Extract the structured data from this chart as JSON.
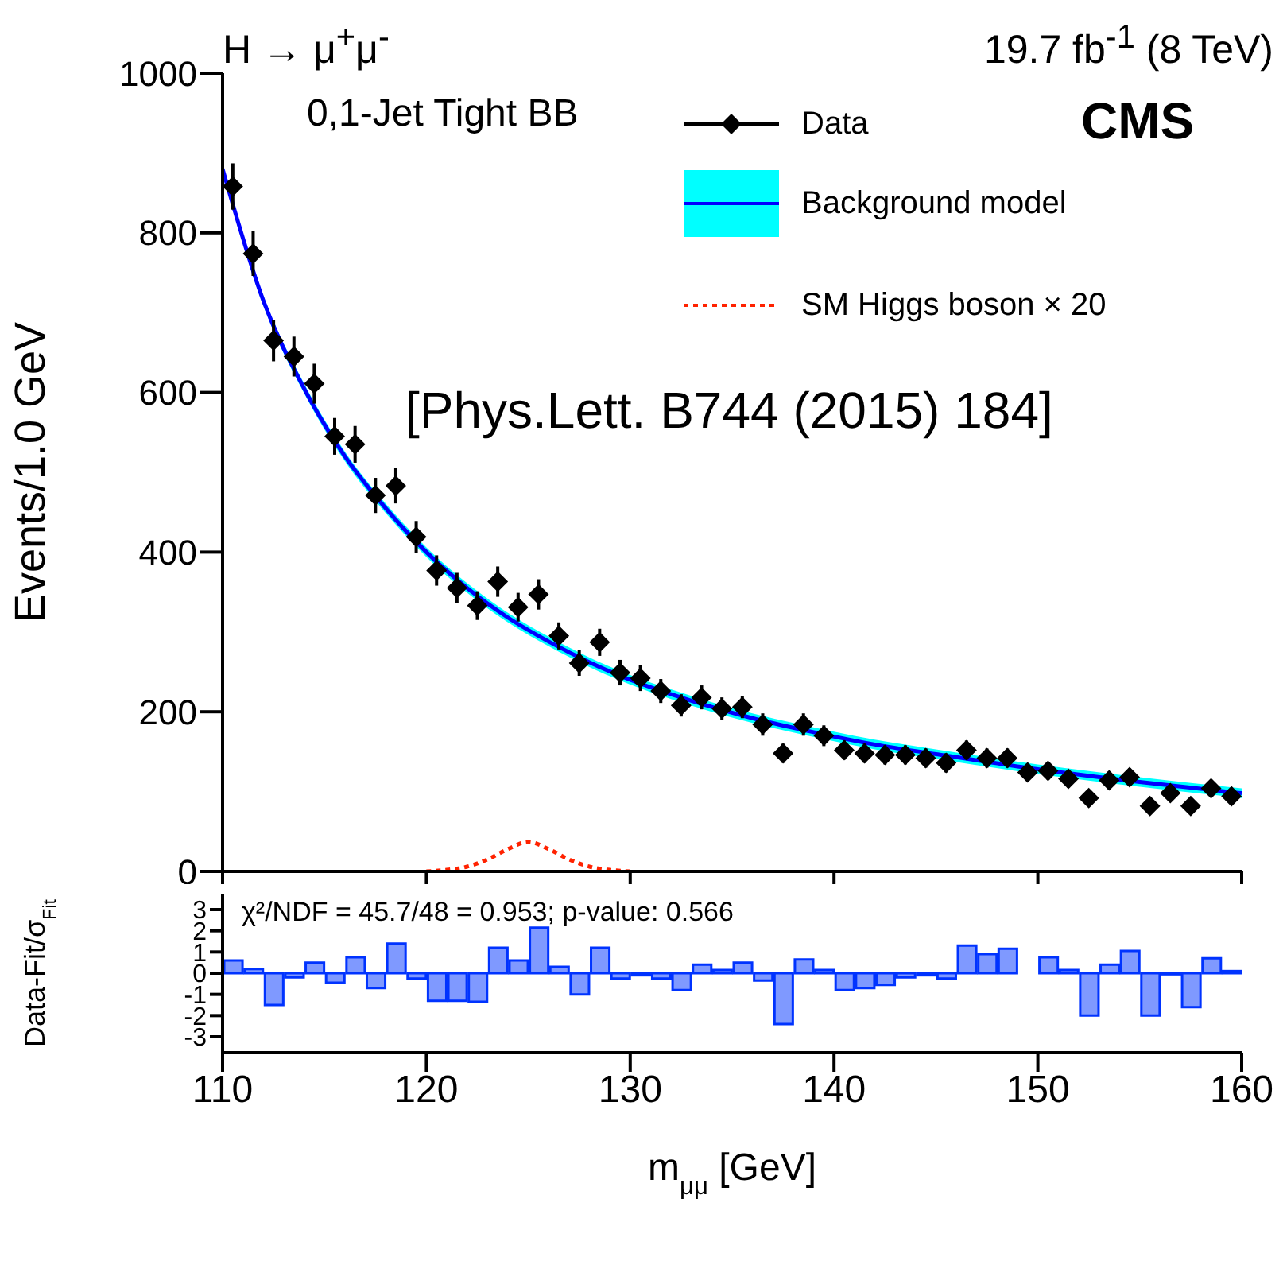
{
  "chart_data": [
    {
      "type": "scatter",
      "title": "H → μ$^{+}$μ$^{-}$",
      "subtitle": "19.7 fb$^{-1}$ (8 TeV)",
      "ylabel": "Events/1.0 GeV",
      "annotations": [
        "0,1-Jet Tight BB",
        "CMS",
        "[Phys.Lett. B744 (2015) 184]"
      ],
      "xlim": [
        110,
        160
      ],
      "xticks": [
        110,
        120,
        130,
        140,
        150,
        160
      ],
      "ylim": [
        0,
        1000
      ],
      "yticks": [
        0,
        200,
        400,
        600,
        800,
        1000
      ],
      "tick_labels": "y",
      "legend": "top right",
      "series": [
        {
          "type": "scatter",
          "name": "Data",
          "color": "#000000",
          "marker": "diamond",
          "x": [
            110.5,
            111.5,
            112.5,
            113.5,
            114.5,
            115.5,
            116.5,
            117.5,
            118.5,
            119.5,
            120.5,
            121.5,
            122.5,
            123.5,
            124.5,
            125.5,
            126.5,
            127.5,
            128.5,
            129.5,
            130.5,
            131.5,
            132.5,
            133.5,
            134.5,
            135.5,
            136.5,
            137.5,
            138.5,
            139.5,
            140.5,
            141.5,
            142.5,
            143.5,
            144.5,
            145.5,
            146.5,
            147.5,
            148.5,
            149.5,
            150.5,
            151.5,
            152.5,
            153.5,
            154.5,
            155.5,
            156.5,
            157.5,
            158.5,
            159.5
          ],
          "values": [
            858,
            774,
            665,
            645,
            611,
            545,
            535,
            471,
            483,
            419,
            377,
            355,
            333,
            363,
            331,
            347,
            295,
            261,
            287,
            249,
            242,
            226,
            208,
            218,
            204,
            206,
            184,
            148,
            184,
            170,
            152,
            148,
            146,
            146,
            142,
            136,
            152,
            142,
            142,
            124,
            126,
            116,
            92,
            114,
            118,
            82,
            98,
            82,
            104,
            94
          ],
          "errors": [
            29,
            28,
            26,
            25,
            25,
            23,
            23,
            22,
            22,
            20,
            19,
            19,
            18,
            19,
            18,
            19,
            17,
            16,
            17,
            16,
            16,
            15,
            14,
            15,
            14,
            14,
            14,
            12,
            14,
            13,
            12,
            12,
            12,
            12,
            12,
            12,
            12,
            12,
            12,
            11,
            11,
            11,
            10,
            11,
            11,
            9,
            10,
            9,
            10,
            10
          ]
        },
        {
          "type": "line",
          "name": "Background model",
          "color": "#0000ff",
          "line_style": "solid",
          "x": [
            110,
            112,
            114,
            116,
            118,
            120,
            122,
            124,
            126,
            128,
            130,
            132,
            134,
            136,
            138,
            140,
            142,
            145,
            150,
            155,
            160
          ],
          "values": [
            880,
            715,
            605,
            520,
            455,
            400,
            355,
            318,
            288,
            262,
            240,
            222,
            206,
            192,
            180,
            169,
            159,
            147,
            128,
            112,
            98
          ],
          "lower": [
            874,
            709,
            599,
            514,
            449,
            394,
            349,
            312,
            282,
            256,
            234,
            216,
            200,
            186,
            174,
            163,
            153,
            141,
            122,
            106,
            92
          ],
          "upper": [
            886,
            721,
            611,
            526,
            461,
            406,
            361,
            324,
            294,
            268,
            246,
            228,
            212,
            198,
            186,
            175,
            165,
            153,
            134,
            118,
            104
          ]
        },
        {
          "type": "line",
          "name": "SM Higgs boson × 20",
          "color": "#ff2200",
          "line_style": "dotted",
          "x": [
            120,
            121,
            122,
            123,
            124,
            125,
            126,
            127,
            128,
            129,
            130
          ],
          "values": [
            0,
            2,
            6,
            15,
            28,
            37,
            28,
            15,
            6,
            2,
            0
          ]
        }
      ]
    },
    {
      "type": "histogram",
      "xlabel": "m$_{μμ}$ [GeV]",
      "ylabel": "Data-Fit/σ$_{Fit}$",
      "color": "#0033ff",
      "annotations": [
        "χ²/NDF = 45.7/48 = 0.953; p-value: 0.566"
      ],
      "xlim": [
        110,
        160
      ],
      "xticks": [
        110,
        120,
        130,
        140,
        150,
        160
      ],
      "ylim": [
        -3.75,
        3.75
      ],
      "yticks": [
        -3,
        -2,
        -1,
        0,
        1,
        2,
        3
      ],
      "bins": [
        110,
        111,
        112,
        113,
        114,
        115,
        116,
        117,
        118,
        119,
        120,
        121,
        122,
        123,
        124,
        125,
        126,
        127,
        128,
        129,
        130,
        131,
        132,
        133,
        134,
        135,
        136,
        137,
        138,
        139,
        140,
        141,
        142,
        143,
        144,
        145,
        146,
        147,
        148,
        149,
        150,
        151,
        152,
        153,
        154,
        155,
        156,
        157,
        158,
        159,
        160
      ],
      "values": [
        0.6,
        0.2,
        -1.5,
        -0.2,
        0.5,
        -0.45,
        0.75,
        -0.7,
        1.4,
        -0.25,
        -1.3,
        -1.3,
        -1.35,
        1.2,
        0.6,
        2.15,
        0.3,
        -1.0,
        1.2,
        -0.25,
        -0.1,
        -0.25,
        -0.8,
        0.4,
        0.15,
        0.5,
        -0.35,
        -2.4,
        0.65,
        0.15,
        -0.8,
        -0.7,
        -0.55,
        -0.2,
        -0.1,
        -0.25,
        1.3,
        0.9,
        1.15,
        0.0,
        0.75,
        0.15,
        -2.0,
        0.4,
        1.05,
        -2.0,
        -0.05,
        -1.6,
        0.7,
        0.1
      ]
    }
  ]
}
